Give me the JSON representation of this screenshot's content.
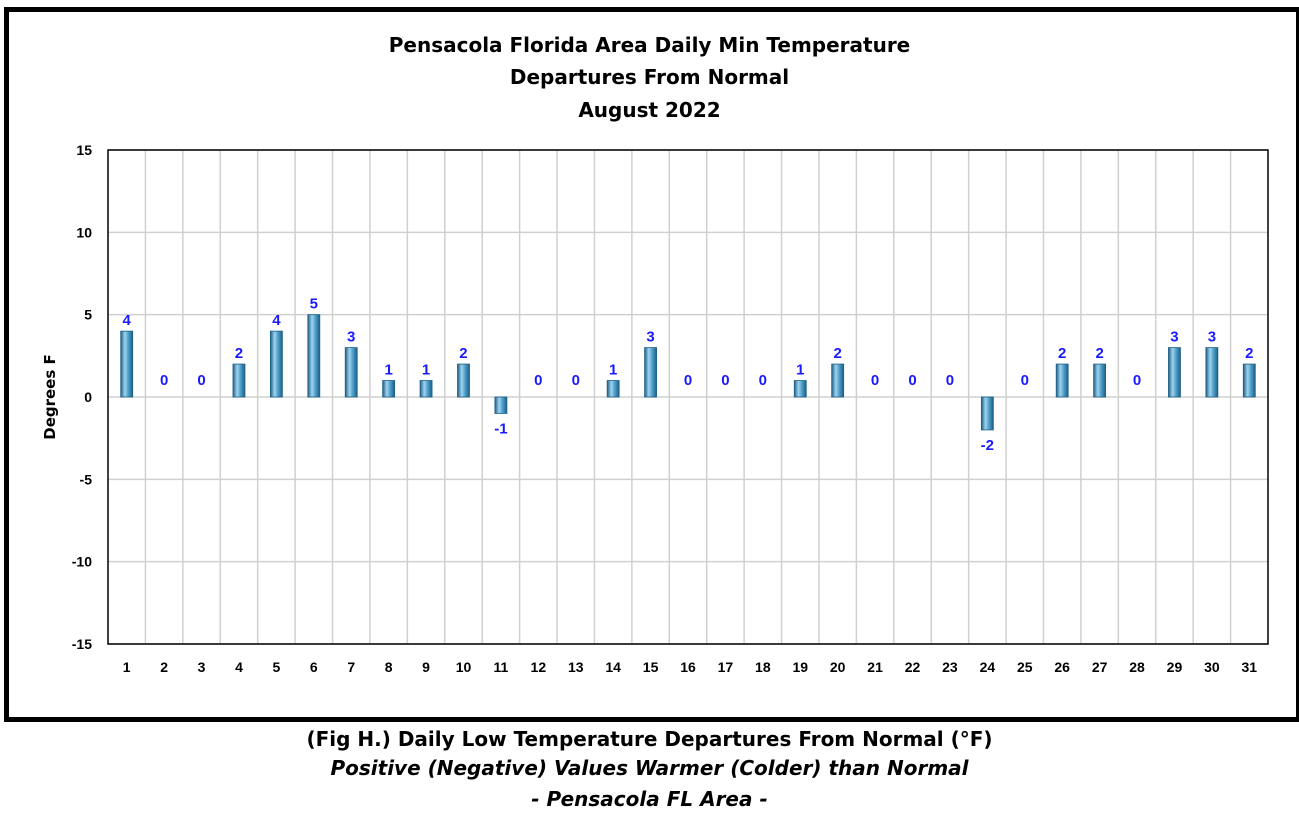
{
  "chart_data": {
    "type": "bar",
    "title_lines": [
      "Pensacola Florida Area Daily Min Temperature",
      "Departures From Normal",
      "August 2022"
    ],
    "xlabel": "",
    "ylabel": "Degrees F",
    "ylim": [
      -15,
      15
    ],
    "yticks": [
      "15",
      "10",
      "5",
      "0",
      "-5",
      "-10",
      "-15"
    ],
    "categories": [
      "1",
      "2",
      "3",
      "4",
      "5",
      "6",
      "7",
      "8",
      "9",
      "10",
      "11",
      "12",
      "13",
      "14",
      "15",
      "16",
      "17",
      "18",
      "19",
      "20",
      "21",
      "22",
      "23",
      "24",
      "25",
      "26",
      "27",
      "28",
      "29",
      "30",
      "31"
    ],
    "values": [
      4,
      0,
      0,
      2,
      4,
      5,
      3,
      1,
      1,
      2,
      -1,
      0,
      0,
      1,
      3,
      0,
      0,
      0,
      1,
      2,
      0,
      0,
      0,
      -2,
      0,
      2,
      2,
      0,
      3,
      3,
      2
    ],
    "grid": true,
    "legend": "none",
    "colors": {
      "bar": "#4a9cc8",
      "bar_highlight": "#9fd3ee",
      "bar_shadow": "#1e5f86",
      "data_label": "#1a1aff",
      "grid": "#d0d0d0"
    }
  },
  "caption": {
    "line1": "(Fig H.) Daily Low Temperature Departures From Normal (°F)",
    "line2": "Positive (Negative) Values Warmer (Colder) than Normal",
    "line3": "- Pensacola FL Area -"
  }
}
